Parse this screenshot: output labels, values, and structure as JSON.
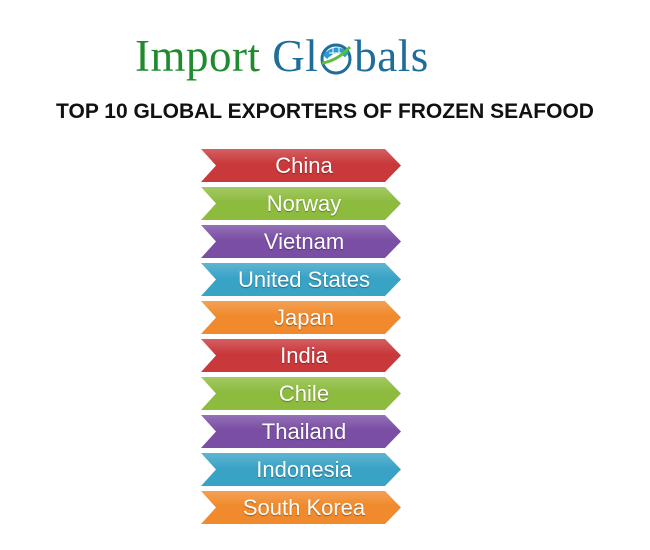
{
  "logo": {
    "part1": "Import",
    "part2a": "Gl",
    "part2b": "bals"
  },
  "title": "TOP 10 GLOBAL EXPORTERS OF FROZEN SEAFOOD",
  "items": [
    {
      "label": "China",
      "color": "#c9383a"
    },
    {
      "label": "Norway",
      "color": "#8dbb3e"
    },
    {
      "label": "Vietnam",
      "color": "#7a4ea5"
    },
    {
      "label": "United States",
      "color": "#39a3c6"
    },
    {
      "label": "Japan",
      "color": "#f08a2c"
    },
    {
      "label": "India",
      "color": "#c9383a"
    },
    {
      "label": "Chile",
      "color": "#8dbb3e"
    },
    {
      "label": "Thailand",
      "color": "#7a4ea5"
    },
    {
      "label": "Indonesia",
      "color": "#39a3c6"
    },
    {
      "label": "South Korea",
      "color": "#f08a2c"
    }
  ]
}
